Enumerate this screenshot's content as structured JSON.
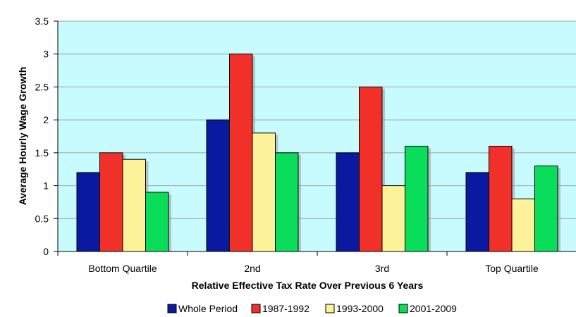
{
  "chart_data": {
    "type": "bar",
    "categories": [
      "Bottom Quartile",
      "2nd",
      "3rd",
      "Top Quartile"
    ],
    "series": [
      {
        "name": "Whole Period",
        "color": "#0a1aa0",
        "values": [
          1.2,
          2.0,
          1.5,
          1.2
        ]
      },
      {
        "name": "1987-1992",
        "color": "#f2302a",
        "values": [
          1.5,
          3.0,
          2.5,
          1.6
        ]
      },
      {
        "name": "1993-2000",
        "color": "#fdf29a",
        "values": [
          1.4,
          1.8,
          1.0,
          0.8
        ]
      },
      {
        "name": "2001-2009",
        "color": "#0add5a",
        "values": [
          0.9,
          1.5,
          1.6,
          1.3
        ]
      }
    ],
    "xlabel": "Relative Effective Tax Rate Over Previous 6 Years",
    "ylabel": "Average Hourly Wage Growth",
    "ylim": [
      0,
      3.5
    ],
    "yticks": [
      "0",
      "0.5",
      "1",
      "1.5",
      "2",
      "2.5",
      "3",
      "3.5"
    ],
    "grid": true,
    "legend_position": "bottom",
    "plot_background": "#c8fbfd",
    "gridline_color": "#9fa0a0"
  }
}
